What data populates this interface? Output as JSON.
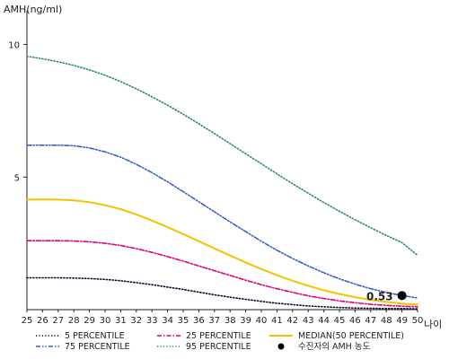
{
  "chart_data": {
    "type": "line",
    "ylabel": "AMH(ng/ml)",
    "xlabel": "나이",
    "x": [
      25,
      26,
      27,
      28,
      29,
      30,
      31,
      32,
      33,
      34,
      35,
      36,
      37,
      38,
      39,
      40,
      41,
      42,
      43,
      44,
      45,
      46,
      47,
      48,
      49,
      50
    ],
    "xlim": [
      25,
      50
    ],
    "ylim": [
      0,
      11
    ],
    "yticks": [
      5,
      10
    ],
    "grid": false,
    "legend_position": "bottom",
    "series": [
      {
        "name": "5 PERCENTILE",
        "color": "#0a0a2a",
        "dash": "dotted",
        "values": [
          1.2,
          1.2,
          1.2,
          1.19,
          1.17,
          1.14,
          1.09,
          1.02,
          0.94,
          0.85,
          0.76,
          0.66,
          0.56,
          0.47,
          0.39,
          0.31,
          0.24,
          0.19,
          0.14,
          0.11,
          0.08,
          0.06,
          0.05,
          0.04,
          0.04,
          0.03
        ]
      },
      {
        "name": "25 PERCENTILE",
        "color": "#e6007e",
        "dash": "dashdot",
        "values": [
          2.6,
          2.6,
          2.6,
          2.59,
          2.56,
          2.5,
          2.42,
          2.3,
          2.16,
          2.0,
          1.83,
          1.65,
          1.47,
          1.29,
          1.11,
          0.94,
          0.79,
          0.65,
          0.52,
          0.42,
          0.33,
          0.26,
          0.2,
          0.16,
          0.13,
          0.11
        ]
      },
      {
        "name": "MEDIAN(50 PERCENTILE)",
        "color": "#f2c400",
        "dash": "solid",
        "values": [
          4.15,
          4.16,
          4.15,
          4.12,
          4.05,
          3.94,
          3.79,
          3.59,
          3.36,
          3.11,
          2.85,
          2.58,
          2.31,
          2.04,
          1.78,
          1.53,
          1.3,
          1.09,
          0.9,
          0.73,
          0.59,
          0.47,
          0.37,
          0.29,
          0.23,
          0.19
        ]
      },
      {
        "name": "75 PERCENTILE",
        "color": "#3a5fcd",
        "dash": "dashdotdot",
        "values": [
          6.2,
          6.2,
          6.2,
          6.18,
          6.1,
          5.95,
          5.75,
          5.48,
          5.17,
          4.82,
          4.45,
          4.07,
          3.69,
          3.31,
          2.94,
          2.58,
          2.24,
          1.93,
          1.65,
          1.39,
          1.16,
          0.96,
          0.79,
          0.65,
          0.53,
          0.44
        ]
      },
      {
        "name": "95 PERCENTILE",
        "color": "#2e8b57",
        "dash": "dotted",
        "values": [
          9.55,
          9.46,
          9.35,
          9.21,
          9.04,
          8.84,
          8.6,
          8.33,
          8.03,
          7.71,
          7.37,
          7.01,
          6.64,
          6.26,
          5.88,
          5.5,
          5.12,
          4.75,
          4.39,
          4.04,
          3.71,
          3.39,
          3.09,
          2.8,
          2.53,
          2.05
        ]
      }
    ],
    "markers": [
      {
        "name": "수진자의 AMH 농도",
        "x": 49,
        "y": 0.53,
        "label": "0.53",
        "color": "#000000"
      }
    ]
  }
}
